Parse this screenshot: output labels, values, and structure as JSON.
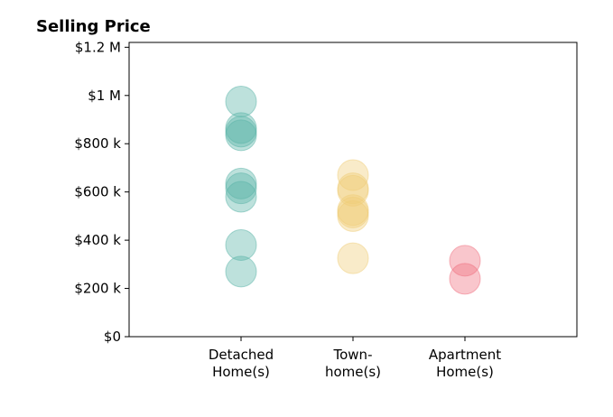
{
  "chart_data": {
    "type": "scatter",
    "title": "Selling Price",
    "xlabel": "",
    "ylabel": "",
    "categories": [
      [
        "Detached",
        "Home(s)"
      ],
      [
        "Town-",
        "home(s)"
      ],
      [
        "Apartment",
        "Home(s)"
      ]
    ],
    "ylim": [
      0,
      1220000
    ],
    "yticks": [
      0,
      200000,
      400000,
      600000,
      800000,
      1000000,
      1200000
    ],
    "ytick_labels": [
      "$0",
      "$200 k",
      "$400 k",
      "$600 k",
      "$800 k",
      "$1 M",
      "$1.2 M"
    ],
    "grid": false,
    "legend": "none",
    "series": [
      {
        "category_index": 0,
        "color": "#5ab4a8",
        "values": [
          975000,
          865000,
          850000,
          835000,
          635000,
          615000,
          580000,
          380000,
          270000
        ]
      },
      {
        "category_index": 1,
        "color": "#efcd78",
        "values": [
          670000,
          615000,
          605000,
          525000,
          515000,
          500000,
          325000
        ]
      },
      {
        "category_index": 2,
        "color": "#ef7080",
        "values": [
          315000,
          240000
        ]
      }
    ]
  }
}
